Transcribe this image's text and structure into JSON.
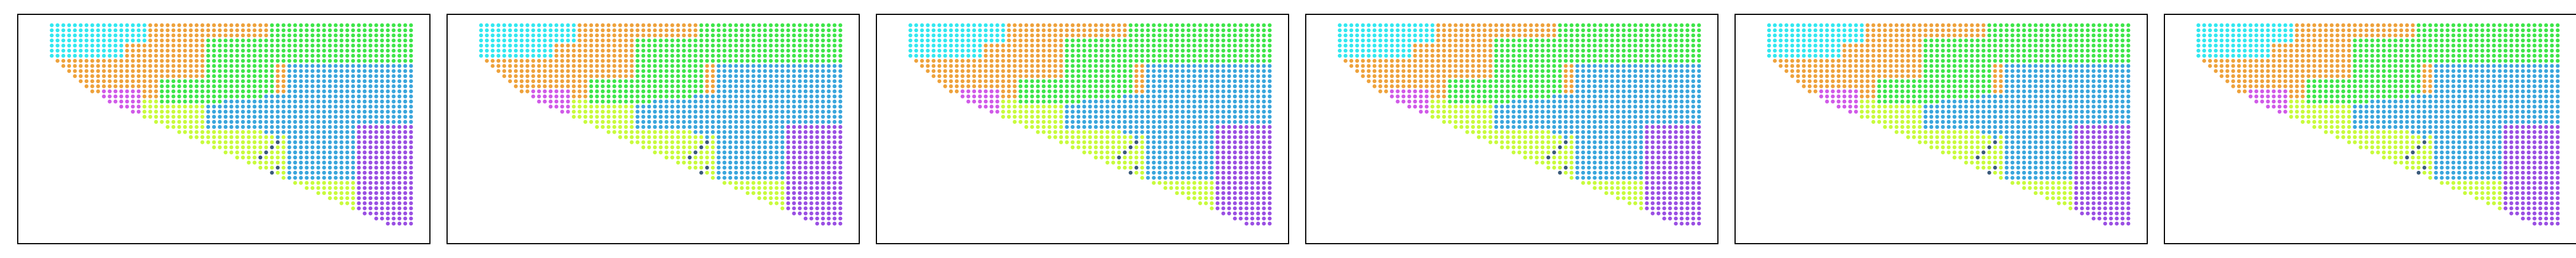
{
  "figure": {
    "background": "#ffffff",
    "frame_color": "#000000"
  },
  "chart_data": {
    "type": "scatter",
    "axes": {
      "x_ticks_shown": false,
      "y_ticks_shown": false,
      "grid": false,
      "legend": "none"
    },
    "point_style": {
      "marker": "circle",
      "size": "small"
    },
    "grid_domain": {
      "columns": 66,
      "rows": 40,
      "x_range": [
        0,
        65
      ],
      "y_range": [
        0,
        39
      ]
    },
    "clusters": [
      {
        "id": 0,
        "color": "#33e8f0"
      },
      {
        "id": 1,
        "color": "#eea23c"
      },
      {
        "id": 2,
        "color": "#3ee64a"
      },
      {
        "id": 3,
        "color": "#3aa6dc"
      },
      {
        "id": 4,
        "color": "#c8fb3c"
      },
      {
        "id": 5,
        "color": "#9a4fe3"
      },
      {
        "id": 6,
        "color": "#d05ae8"
      },
      {
        "id": 7,
        "color": "#3a5a7a"
      }
    ],
    "tissue_rows": [
      {
        "row": 0,
        "x_start": 3,
        "x_end": 65
      },
      {
        "row": 1,
        "x_start": 3,
        "x_end": 65
      },
      {
        "row": 2,
        "x_start": 3,
        "x_end": 65
      },
      {
        "row": 3,
        "x_start": 3,
        "x_end": 65
      },
      {
        "row": 4,
        "x_start": 3,
        "x_end": 65
      },
      {
        "row": 5,
        "x_start": 3,
        "x_end": 65
      },
      {
        "row": 6,
        "x_start": 3,
        "x_end": 65
      },
      {
        "row": 7,
        "x_start": 4,
        "x_end": 65
      },
      {
        "row": 8,
        "x_start": 5,
        "x_end": 65
      },
      {
        "row": 9,
        "x_start": 6,
        "x_end": 65
      },
      {
        "row": 10,
        "x_start": 7,
        "x_end": 65
      },
      {
        "row": 11,
        "x_start": 8,
        "x_end": 65
      },
      {
        "row": 12,
        "x_start": 9,
        "x_end": 65
      },
      {
        "row": 13,
        "x_start": 10,
        "x_end": 65
      },
      {
        "row": 14,
        "x_start": 12,
        "x_end": 65
      },
      {
        "row": 15,
        "x_start": 13,
        "x_end": 65
      },
      {
        "row": 16,
        "x_start": 15,
        "x_end": 65
      },
      {
        "row": 17,
        "x_start": 17,
        "x_end": 65
      },
      {
        "row": 18,
        "x_start": 19,
        "x_end": 65
      },
      {
        "row": 19,
        "x_start": 21,
        "x_end": 65
      },
      {
        "row": 20,
        "x_start": 23,
        "x_end": 65
      },
      {
        "row": 21,
        "x_start": 25,
        "x_end": 65
      },
      {
        "row": 22,
        "x_start": 27,
        "x_end": 65
      },
      {
        "row": 23,
        "x_start": 29,
        "x_end": 65
      },
      {
        "row": 24,
        "x_start": 31,
        "x_end": 65
      },
      {
        "row": 25,
        "x_start": 33,
        "x_end": 65
      },
      {
        "row": 26,
        "x_start": 35,
        "x_end": 65
      },
      {
        "row": 27,
        "x_start": 37,
        "x_end": 65
      },
      {
        "row": 28,
        "x_start": 39,
        "x_end": 65
      },
      {
        "row": 29,
        "x_start": 41,
        "x_end": 65
      },
      {
        "row": 30,
        "x_start": 43,
        "x_end": 65
      },
      {
        "row": 31,
        "x_start": 45,
        "x_end": 65
      },
      {
        "row": 32,
        "x_start": 47,
        "x_end": 65
      },
      {
        "row": 33,
        "x_start": 49,
        "x_end": 65
      },
      {
        "row": 34,
        "x_start": 51,
        "x_end": 65
      },
      {
        "row": 35,
        "x_start": 53,
        "x_end": 65
      },
      {
        "row": 36,
        "x_start": 55,
        "x_end": 65
      },
      {
        "row": 37,
        "x_start": 57,
        "x_end": 65
      },
      {
        "row": 38,
        "x_start": 59,
        "x_end": 65
      },
      {
        "row": 39,
        "x_start": 61,
        "x_end": 65
      }
    ],
    "panels": [
      {
        "name": "panel-1"
      },
      {
        "name": "panel-2"
      },
      {
        "name": "panel-3"
      },
      {
        "name": "panel-4"
      },
      {
        "name": "panel-5"
      },
      {
        "name": "panel-6"
      }
    ]
  }
}
